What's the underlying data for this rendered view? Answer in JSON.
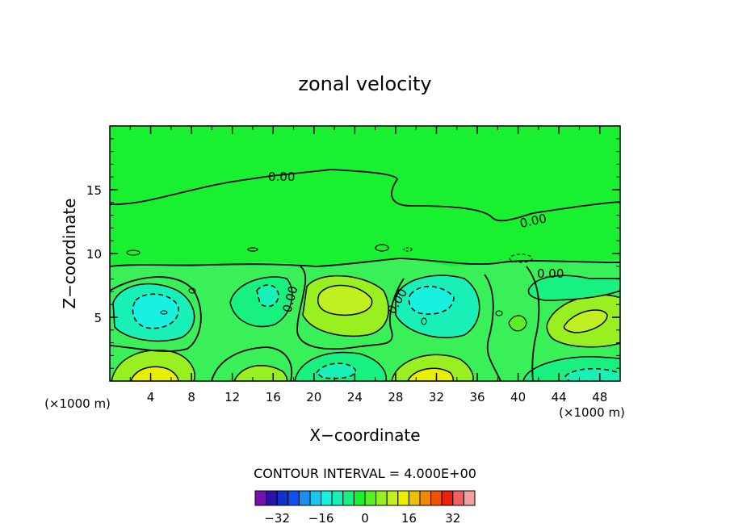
{
  "chart_data": {
    "type": "heatmap",
    "title": "zonal velocity",
    "xlabel": "X−coordinate",
    "ylabel": "Z−coordinate",
    "x_unit": "(×1000 m)",
    "z_unit": "(×1000 m)",
    "xlim": [
      0,
      50
    ],
    "ylim": [
      0,
      20
    ],
    "x_ticks": [
      "4",
      "8",
      "12",
      "16",
      "20",
      "24",
      "28",
      "32",
      "36",
      "40",
      "44",
      "48"
    ],
    "y_ticks": [
      "5",
      "10",
      "15"
    ],
    "contour_interval_text": "CONTOUR INTERVAL = 4.000E+00",
    "contour_interval": 4,
    "contour_labels": [
      "0.00",
      "0.00",
      "0.00",
      "0.00",
      "0.00"
    ],
    "colorbar": {
      "levels": [
        -36,
        -32,
        -28,
        -24,
        -20,
        -16,
        -12,
        -8,
        -4,
        0,
        4,
        8,
        12,
        16,
        20,
        24,
        28,
        32,
        36
      ],
      "tick_labels": [
        "−32",
        "−16",
        "0",
        "16",
        "32"
      ],
      "tick_values": [
        -32,
        -16,
        0,
        16,
        32
      ],
      "colors": [
        "#7a10b0",
        "#2a14a8",
        "#1030d0",
        "#1050f0",
        "#1890f0",
        "#18c8f0",
        "#18f0e0",
        "#18f0b8",
        "#18f080",
        "#18f030",
        "#58f020",
        "#98f020",
        "#c0f020",
        "#e8f000",
        "#f0c000",
        "#f08800",
        "#f05000",
        "#f02010",
        "#f06060",
        "#f0a0a0"
      ]
    },
    "features": [
      {
        "x": 5,
        "z": 5.5,
        "value": -8,
        "sign": "negative"
      },
      {
        "x": 4.5,
        "z": 0.8,
        "value": 12,
        "sign": "positive"
      },
      {
        "x": 15,
        "z": 6.5,
        "value": -6,
        "sign": "negative"
      },
      {
        "x": 14.5,
        "z": 0.6,
        "value": 10,
        "sign": "positive"
      },
      {
        "x": 22.5,
        "z": 6.5,
        "value": 10,
        "sign": "positive"
      },
      {
        "x": 21,
        "z": 1.2,
        "value": -6,
        "sign": "negative"
      },
      {
        "x": 31,
        "z": 5.8,
        "value": -8,
        "sign": "negative"
      },
      {
        "x": 30.5,
        "z": 0.8,
        "value": 12,
        "sign": "positive"
      },
      {
        "x": 39.5,
        "z": 4.5,
        "value": 6,
        "sign": "positive"
      },
      {
        "x": 46,
        "z": 4.5,
        "value": 12,
        "sign": "positive"
      },
      {
        "x": 43.5,
        "z": 7.5,
        "value": -4,
        "sign": "negative"
      },
      {
        "x": 45,
        "z": 0.8,
        "value": -4,
        "sign": "negative"
      }
    ]
  }
}
